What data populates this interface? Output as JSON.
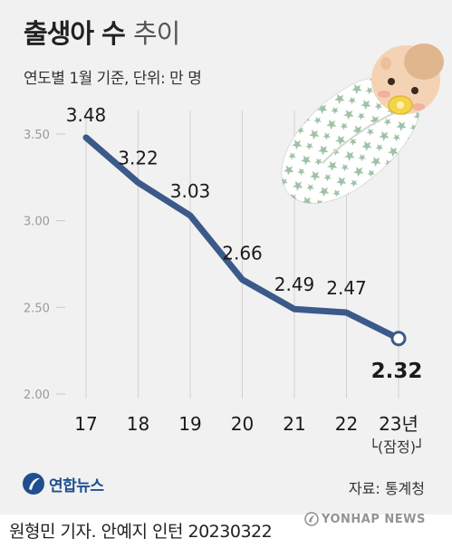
{
  "title": {
    "bold": "출생아 수",
    "light": "추이"
  },
  "subtitle": "연도별 1월 기준, 단위: 만 명",
  "chart_data": {
    "type": "line",
    "categories": [
      "17",
      "18",
      "19",
      "20",
      "21",
      "22",
      "23년"
    ],
    "values": [
      3.48,
      3.22,
      3.03,
      2.66,
      2.49,
      2.47,
      2.32
    ],
    "value_labels": [
      "3.48",
      "3.22",
      "3.03",
      "2.66",
      "2.49",
      "2.47",
      "2.32"
    ],
    "ylim": [
      2.0,
      3.5
    ],
    "yticks": [
      2.0,
      2.5,
      3.0,
      3.5
    ],
    "ytick_labels": [
      "2.00",
      "2.50",
      "3.00",
      "3.50"
    ],
    "annotation": "└(잠정)┘",
    "grid": "vertical",
    "line_color": "#3b5a8a"
  },
  "footer": {
    "logo_text": "연합뉴스",
    "source": "자료: 통계청",
    "credit": "원형민 기자. 안예지 인턴 20230322",
    "watermark": "YONHAP NEWS"
  },
  "icons": [
    "baby-illustration-icon",
    "yonhap-logo-icon",
    "yonhap-watermark-icon"
  ]
}
